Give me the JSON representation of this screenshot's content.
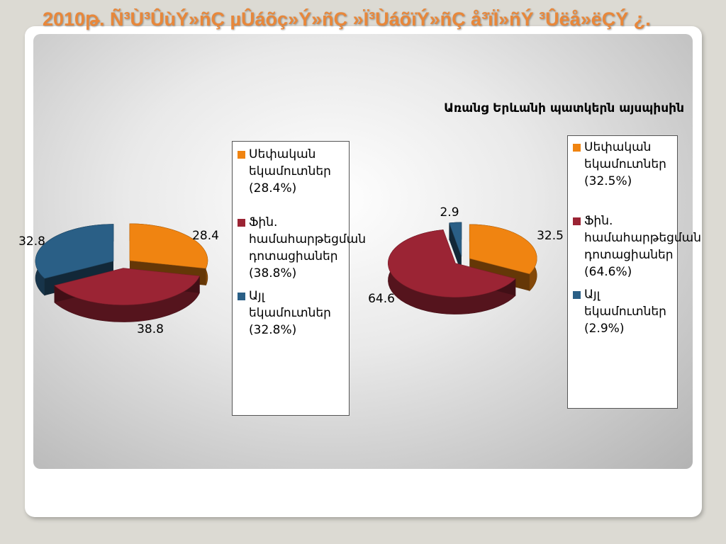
{
  "slide": {
    "title": "2010թ. Ñ³Ù³ÛùÝ»ñÇ µÛáõç»Ý»ñÇ »Ï³ÙáõïÝ»ñÇ å³ïÏ»ñÝ ³Ûëå»ëÇÝ ¿."
  },
  "colors": {
    "own_revenue": "#f08411",
    "grants": "#9b2434",
    "other": "#2a5f86"
  },
  "chart_data": [
    {
      "type": "pie",
      "title": "",
      "categories": [
        "Սեփական եկամուտներ (28.4%)",
        "Ֆին. համահարթեցման դոտացիաներ (38.8%)",
        "Այլ եկամուտներ (32.8%)"
      ],
      "values": [
        28.4,
        38.8,
        32.8
      ],
      "data_labels": [
        "28.4",
        "38.8",
        "32.8"
      ],
      "legend": "right",
      "exploded": true
    },
    {
      "type": "pie",
      "title": "Առանց Երևանի պատկերն այսպիսին",
      "categories": [
        "Սեփական եկամուտներ (32.5%)",
        "Ֆին. համահարթեցման դոտացիաներ (64.6%)",
        "Այլ եկամուտներ (2.9%)"
      ],
      "values": [
        32.5,
        64.6,
        2.9
      ],
      "data_labels": [
        "32.5",
        "64.6",
        "2.9"
      ],
      "legend": "right",
      "exploded": true
    }
  ]
}
